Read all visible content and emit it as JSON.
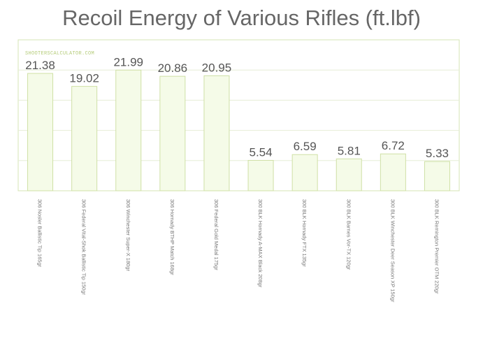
{
  "chart_data": {
    "type": "bar",
    "title": "Recoil Energy of Various Rifles (ft.lbf)",
    "watermark": "SHOOTERSCALCULATOR.COM",
    "categories": [
      "306 Nosler Ballistic Tip 165gr",
      "306 Federal Vital-Shok Ballistic Tip 150gr",
      "306 Winchester Super-X 180gr",
      "306 Hornady BTHP Match 168gr",
      "306 Federal Gold Medal 175gr",
      "300 BLK Hornady A-MAX Black 208gr",
      "300 BLK Hornady FTX 135gr",
      "300 BLK Barnes Vor-TX 120gr",
      "300 BLK Winchester Deer Season XP 150gr",
      "300 BLK Remington Premier OTM 220gr"
    ],
    "values": [
      21.38,
      19.02,
      21.99,
      20.86,
      20.95,
      5.54,
      6.59,
      5.81,
      6.72,
      5.33
    ],
    "data_labels": [
      "21.38",
      "19.02",
      "21.99",
      "20.86",
      "20.95",
      "5.54",
      "6.59",
      "5.81",
      "6.72",
      "5.33"
    ],
    "xlabel": "",
    "ylabel": "",
    "ylim": [
      0,
      27.5
    ],
    "grid": true,
    "colors": {
      "bar_fill": "#f5fbe8",
      "bar_stroke": "#cfe0a6",
      "grid": "#e6edd6",
      "frame": "#d6e4b4"
    }
  }
}
